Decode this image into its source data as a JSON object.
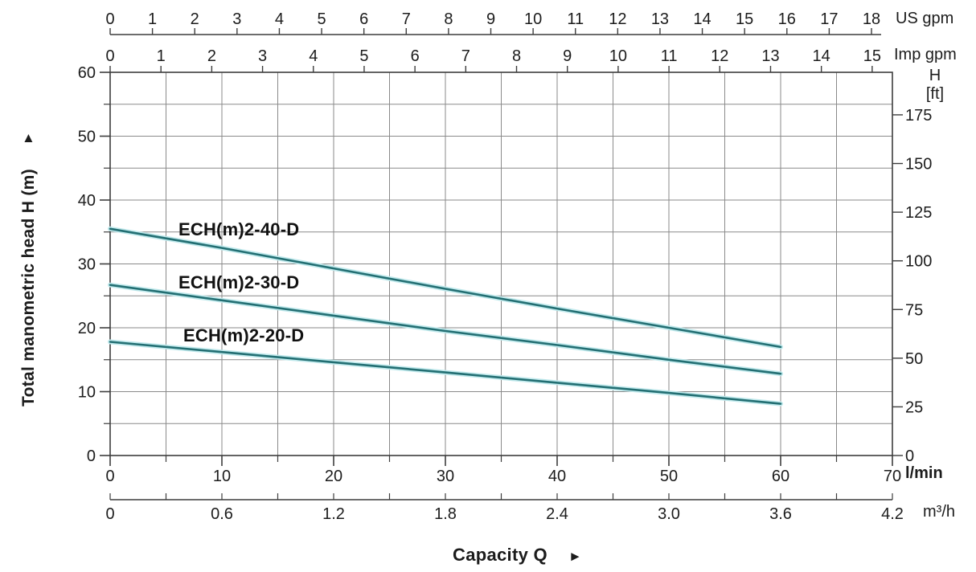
{
  "chart_data": {
    "type": "line",
    "title": "",
    "xlabel": "Capacity Q",
    "xlabel_arrow": "►",
    "ylabel": "Total manometric head H (m)",
    "ylabel_arrow": "▲",
    "grid": true,
    "legend_position": "inline-curve-labels",
    "xlim_lmin": [
      0,
      70
    ],
    "ylim_m": [
      0,
      60
    ],
    "axes": {
      "x_us_gpm": {
        "unit": "US gpm",
        "ticks": [
          0,
          1,
          2,
          3,
          4,
          5,
          6,
          7,
          8,
          9,
          10,
          11,
          12,
          13,
          14,
          15,
          16,
          17,
          18
        ],
        "lmin_per_unit": 3.785
      },
      "x_imp_gpm": {
        "unit": "Imp gpm",
        "ticks": [
          0,
          1,
          2,
          3,
          4,
          5,
          6,
          7,
          8,
          9,
          10,
          11,
          12,
          13,
          14,
          15
        ],
        "lmin_per_unit": 4.546
      },
      "x_lmin": {
        "unit": "l/min",
        "min": 0,
        "max": 70,
        "major_ticks": [
          0,
          10,
          20,
          30,
          40,
          50,
          60,
          70
        ],
        "minor_step": 5
      },
      "x_m3h": {
        "unit": "m³/h",
        "min": 0,
        "max": 4.2,
        "major_tick_labels": [
          "0",
          "0.6",
          "1.2",
          "1.8",
          "2.4",
          "3.0",
          "3.6",
          "4.2"
        ],
        "minor_step": 0.3,
        "lmin_per_unit": 16.6667
      },
      "y_m": {
        "unit": "m",
        "min": 0,
        "max": 60,
        "major_ticks": [
          0,
          10,
          20,
          30,
          40,
          50,
          60
        ],
        "minor_step": 5
      },
      "y_ft": {
        "label_line1": "H",
        "label_line2": "[ft]",
        "ticks": [
          0,
          25,
          50,
          75,
          100,
          125,
          150,
          175
        ],
        "m_per_ft": 0.3048
      }
    },
    "series": [
      {
        "name": "ECH(m)2-40-D",
        "points": [
          [
            0,
            35.5
          ],
          [
            10,
            32.5
          ],
          [
            20,
            29.3
          ],
          [
            30,
            26.1
          ],
          [
            40,
            23.0
          ],
          [
            50,
            20.0
          ],
          [
            60,
            17.0
          ]
        ]
      },
      {
        "name": "ECH(m)2-30-D",
        "points": [
          [
            0,
            26.7
          ],
          [
            10,
            24.3
          ],
          [
            20,
            21.9
          ],
          [
            30,
            19.5
          ],
          [
            40,
            17.3
          ],
          [
            50,
            15.0
          ],
          [
            60,
            12.8
          ]
        ]
      },
      {
        "name": "ECH(m)2-20-D",
        "points": [
          [
            0,
            17.8
          ],
          [
            10,
            16.2
          ],
          [
            20,
            14.6
          ],
          [
            30,
            13.0
          ],
          [
            40,
            11.4
          ],
          [
            50,
            9.8
          ],
          [
            60,
            8.1
          ]
        ]
      }
    ],
    "colors": {
      "curve": "#236f73",
      "curve_halo": "#c0e9ec",
      "grid": "#8a8a8a",
      "axis": "#3d3d3d",
      "text": "#1c1c1c"
    }
  }
}
